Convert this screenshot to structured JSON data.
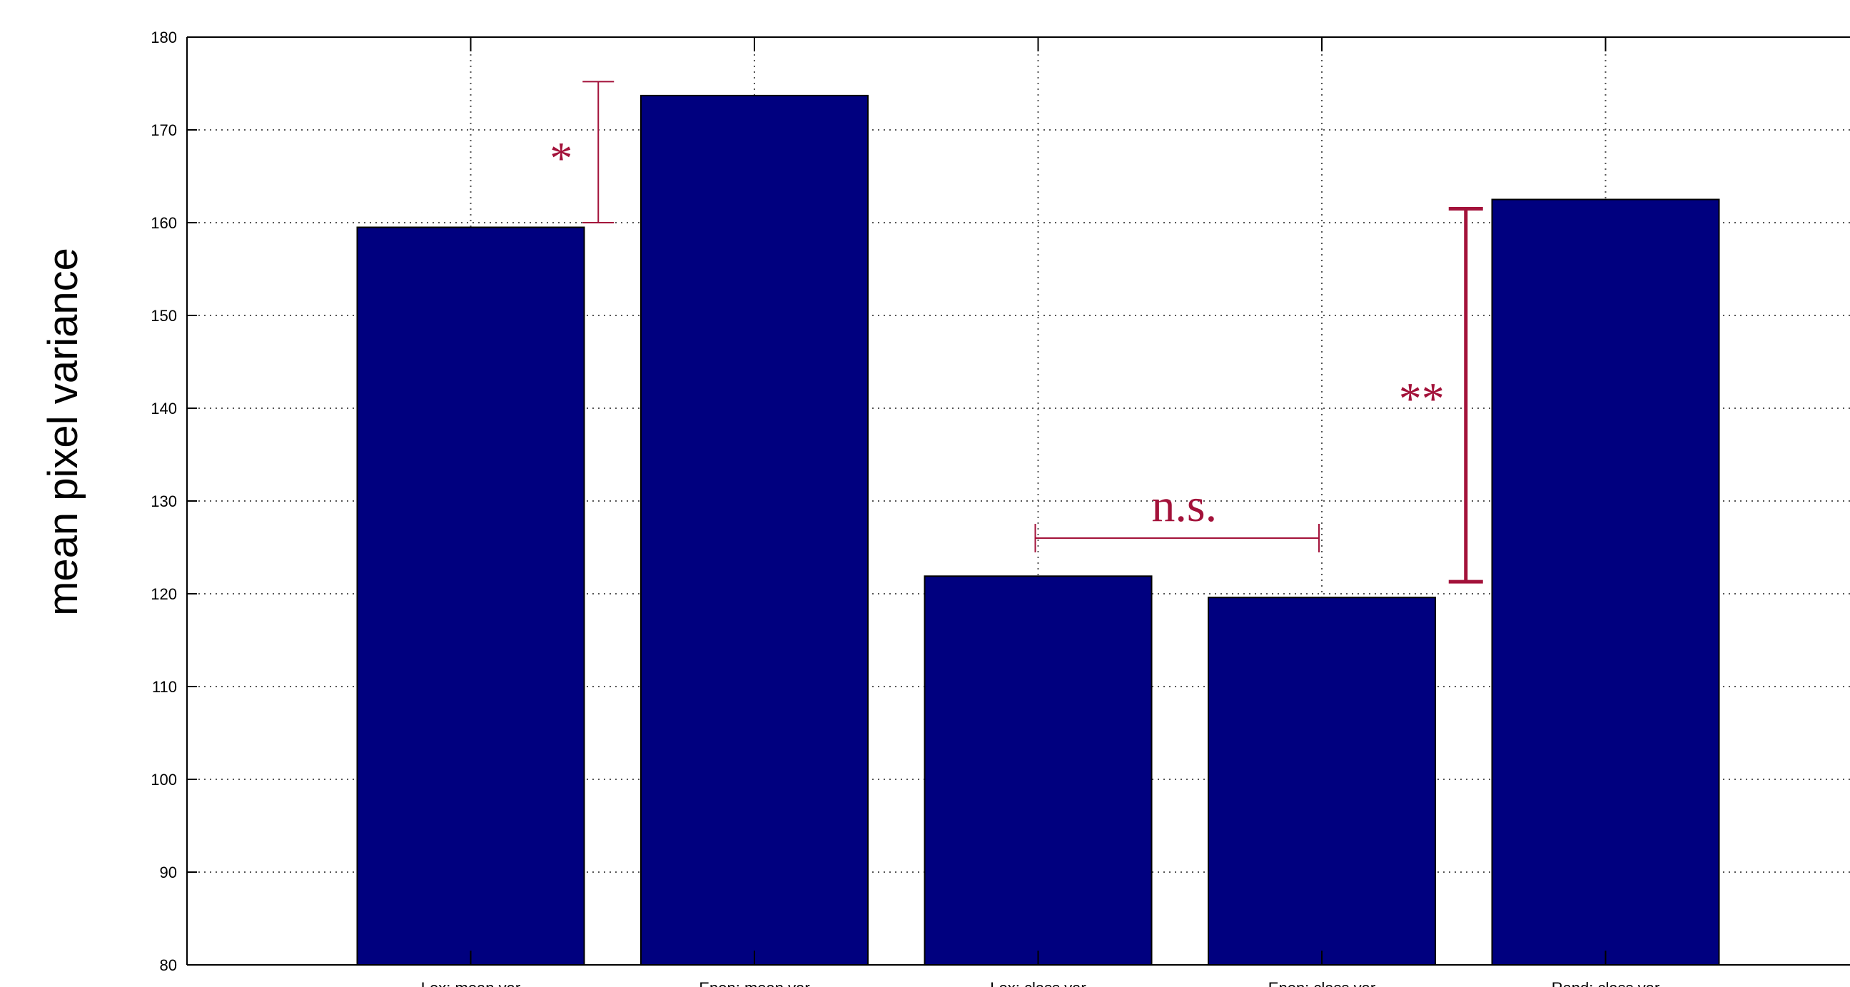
{
  "chart_data": {
    "type": "bar",
    "title": "",
    "xlabel": "",
    "ylabel": "mean pixel variance",
    "categories": [
      "Lex: mean var",
      "Enen: mean var",
      "Lex: class var",
      "Enen: class var",
      "Rand: class var"
    ],
    "values": [
      159.5,
      173.7,
      121.9,
      119.6,
      162.5
    ],
    "ylim": [
      80,
      180
    ],
    "yticks": [
      80,
      90,
      100,
      110,
      120,
      130,
      140,
      150,
      160,
      170,
      180
    ],
    "grid": true,
    "bar_color": "#00007f",
    "annotation_color": "#a3123a",
    "annotations": [
      {
        "label": "*",
        "type": "vertical-bracket",
        "x_between": [
          0,
          1
        ],
        "y_range": [
          160,
          175.2
        ]
      },
      {
        "label": "n.s.",
        "type": "horizontal-bracket",
        "x_range": [
          2,
          3
        ],
        "y": 126
      },
      {
        "label": "**",
        "type": "vertical-bracket",
        "x_between": [
          3,
          4
        ],
        "y_range": [
          121.3,
          161.5
        ]
      }
    ]
  }
}
